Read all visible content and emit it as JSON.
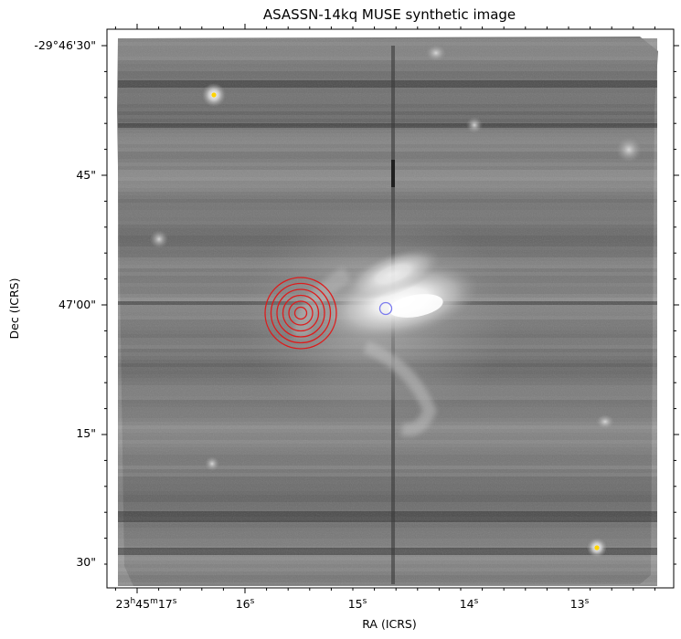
{
  "figure": {
    "title": "ASASSN-14kq MUSE synthetic image",
    "xlabel": "RA (ICRS)",
    "ylabel": "Dec (ICRS)"
  },
  "ra_ticks": [
    {
      "h": "23",
      "hu": "h",
      "m": "45",
      "mu": "m",
      "s": "17",
      "su": "s"
    },
    {
      "s": "16",
      "su": "s"
    },
    {
      "s": "15",
      "su": "s"
    },
    {
      "s": "14",
      "su": "s"
    },
    {
      "s": "13",
      "su": "s"
    }
  ],
  "dec_ticks": [
    "-29°46'30\"",
    "45\"",
    "47'00\"",
    "15\"",
    "30\""
  ],
  "markers": {
    "transient": {
      "label": "red concentric circles",
      "color": "#dd1c1c",
      "rings": 6
    },
    "host_nucleus": {
      "label": "blue circle",
      "color": "#7a7aee"
    },
    "stars": {
      "color": "#ffd400"
    }
  }
}
